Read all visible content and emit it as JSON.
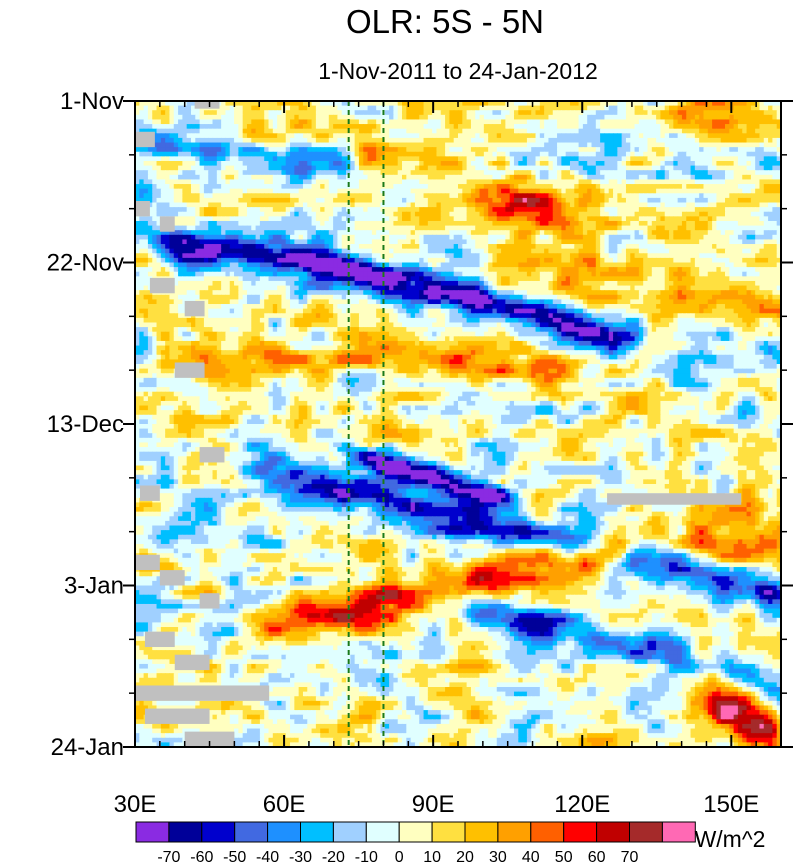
{
  "chart_data": {
    "type": "heatmap",
    "title": "OLR: 5S - 5N",
    "subtitle": "1-Nov-2011 to 24-Jan-2012",
    "x_ticks": [
      {
        "value": 30,
        "label": "30E"
      },
      {
        "value": 60,
        "label": "60E"
      },
      {
        "value": 90,
        "label": "90E"
      },
      {
        "value": 120,
        "label": "120E"
      },
      {
        "value": 150,
        "label": "150E"
      }
    ],
    "xlim": [
      30,
      160
    ],
    "y_ticks": [
      {
        "value": 0,
        "label": "1-Nov"
      },
      {
        "value": 21,
        "label": "22-Nov"
      },
      {
        "value": 42,
        "label": "13-Dec"
      },
      {
        "value": 63,
        "label": "3-Jan"
      },
      {
        "value": 84,
        "label": "24-Jan"
      }
    ],
    "ylim": [
      0,
      84
    ],
    "y_direction": "down",
    "reference_lines": [
      {
        "type": "vertical",
        "x": 73,
        "style": "dashed",
        "color": "#1a7a1a"
      },
      {
        "type": "vertical",
        "x": 80,
        "style": "dashed",
        "color": "#1a7a1a"
      }
    ],
    "colorbar": {
      "unit": "W/m^2",
      "labels": [
        "-70",
        "-60",
        "-50",
        "-40",
        "-30",
        "-20",
        "-10",
        "0",
        "10",
        "20",
        "30",
        "40",
        "50",
        "60",
        "70"
      ],
      "colors": [
        "#8a2be2",
        "#000099",
        "#0000cd",
        "#4169e1",
        "#1e90ff",
        "#00bfff",
        "#a0d0ff",
        "#e0ffff",
        "#ffffc0",
        "#ffe040",
        "#ffc000",
        "#ffa000",
        "#ff6000",
        "#ff0000",
        "#c00000",
        "#a52a2a",
        "#ff69b4"
      ]
    },
    "anomaly_features": [
      {
        "kind": "negative",
        "x": [
          38,
          60,
          78,
          95,
          112,
          128
        ],
        "day": [
          19,
          20,
          23,
          25,
          28,
          31
        ],
        "peak": -75,
        "width": 2.2
      },
      {
        "kind": "negative",
        "x": [
          55,
          80,
          100,
          120,
          140,
          160
        ],
        "day": [
          48,
          52,
          55,
          58,
          61,
          64
        ],
        "peak": -55,
        "width": 2.4
      },
      {
        "kind": "negative",
        "x": [
          88,
          105,
          125,
          145,
          160
        ],
        "day": [
          64,
          67,
          70,
          73,
          76
        ],
        "peak": -42,
        "width": 2.5
      },
      {
        "kind": "negative",
        "x": [
          30,
          45,
          60,
          80,
          100
        ],
        "day": [
          5,
          6,
          8,
          9,
          11
        ],
        "peak": -38,
        "width": 2.0
      },
      {
        "kind": "negative",
        "x": [
          75,
          85,
          95,
          105
        ],
        "day": [
          46,
          48,
          50,
          52
        ],
        "peak": -75,
        "width": 1.6
      },
      {
        "kind": "positive",
        "x": [
          75,
          90,
          100,
          115
        ],
        "day": [
          8,
          10,
          12,
          14
        ],
        "peak": 55,
        "width": 3.0
      },
      {
        "kind": "positive",
        "x": [
          55,
          75,
          95,
          110,
          130
        ],
        "day": [
          68,
          66,
          63,
          60,
          58
        ],
        "peak": 58,
        "width": 3.0
      },
      {
        "kind": "positive",
        "x": [
          40,
          60,
          75,
          95,
          115
        ],
        "day": [
          34,
          34,
          33,
          34,
          35
        ],
        "peak": 35,
        "width": 2.5
      },
      {
        "kind": "positive",
        "x": [
          140,
          150,
          160
        ],
        "day": [
          1,
          2,
          3
        ],
        "peak": 35,
        "width": 2.5
      },
      {
        "kind": "positive",
        "x": [
          145,
          152,
          160
        ],
        "day": [
          76,
          80,
          84
        ],
        "peak": 65,
        "width": 4.0
      },
      {
        "kind": "positive",
        "x": [
          140,
          160
        ],
        "day": [
          57,
          57
        ],
        "peak": 45,
        "width": 4.0
      },
      {
        "kind": "positive",
        "x": [
          100,
          130,
          160
        ],
        "day": [
          23,
          24,
          26
        ],
        "peak": 22,
        "width": 3.5
      }
    ],
    "missing_data": [
      {
        "x": [
          30,
          34
        ],
        "day": [
          4,
          6
        ]
      },
      {
        "x": [
          30,
          33
        ],
        "day": [
          13,
          15
        ]
      },
      {
        "x": [
          35,
          38
        ],
        "day": [
          15,
          17
        ]
      },
      {
        "x": [
          33,
          38
        ],
        "day": [
          23,
          25
        ]
      },
      {
        "x": [
          40,
          44
        ],
        "day": [
          26,
          28
        ]
      },
      {
        "x": [
          38,
          44
        ],
        "day": [
          34,
          36
        ]
      },
      {
        "x": [
          43,
          48
        ],
        "day": [
          45,
          47
        ]
      },
      {
        "x": [
          31,
          35
        ],
        "day": [
          50,
          52
        ]
      },
      {
        "x": [
          125,
          152
        ],
        "day": [
          51,
          52.5
        ]
      },
      {
        "x": [
          30,
          35
        ],
        "day": [
          59,
          61
        ]
      },
      {
        "x": [
          35,
          40
        ],
        "day": [
          61,
          63
        ]
      },
      {
        "x": [
          43,
          47
        ],
        "day": [
          64,
          66
        ]
      },
      {
        "x": [
          32,
          38
        ],
        "day": [
          69,
          71
        ]
      },
      {
        "x": [
          38,
          45
        ],
        "day": [
          72,
          74
        ]
      },
      {
        "x": [
          30,
          57
        ],
        "day": [
          76,
          78
        ]
      },
      {
        "x": [
          32,
          45
        ],
        "day": [
          79,
          81
        ]
      },
      {
        "x": [
          40,
          50
        ],
        "day": [
          82,
          84
        ]
      },
      {
        "x": [
          42,
          47
        ],
        "day": [
          0,
          1
        ]
      }
    ]
  }
}
